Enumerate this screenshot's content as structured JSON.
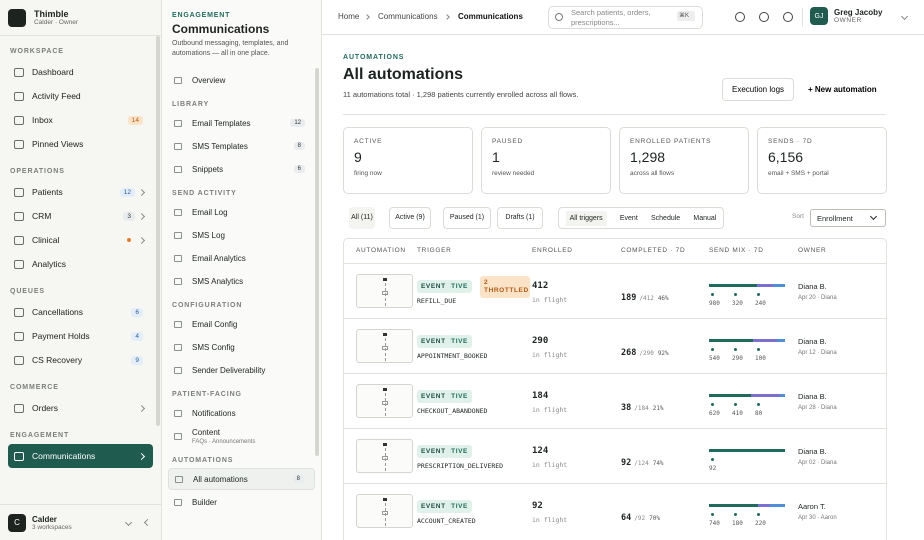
{
  "sidebar": {
    "brand": "Thimble",
    "org": "Calder · Owner",
    "sections": [
      {
        "title": "WORKSPACE",
        "items": [
          {
            "label": "Dashboard"
          },
          {
            "label": "Activity Feed"
          },
          {
            "label": "Inbox",
            "badge": "14",
            "tone": "warn"
          },
          {
            "label": "Pinned Views"
          }
        ]
      },
      {
        "title": "OPERATIONS",
        "items": [
          {
            "label": "Patients",
            "badge": "12",
            "tone": "info",
            "chevron": true
          },
          {
            "label": "CRM",
            "badge": "3",
            "tone": "plain",
            "chevron": true
          },
          {
            "label": "Clinical",
            "dot": true,
            "chevron": true
          },
          {
            "label": "Analytics"
          }
        ]
      },
      {
        "title": "QUEUES",
        "items": [
          {
            "label": "Cancellations",
            "badge": "6",
            "tone": "info"
          },
          {
            "label": "Payment Holds",
            "badge": "4",
            "tone": "info"
          },
          {
            "label": "CS Recovery",
            "badge": "9",
            "tone": "info"
          }
        ]
      },
      {
        "title": "COMMERCE",
        "items": [
          {
            "label": "Orders",
            "chevron": true
          }
        ]
      },
      {
        "title": "ENGAGEMENT",
        "items": [
          {
            "label": "Communications",
            "active": true,
            "chevron": true
          }
        ]
      }
    ],
    "footer": {
      "avatar": "C",
      "name": "Calder",
      "sub": "3 workspaces"
    }
  },
  "subnav": {
    "eyebrow": "ENGAGEMENT",
    "title": "Communications",
    "description": "Outbound messaging, templates, and automations — all in one place.",
    "top": [
      {
        "label": "Overview"
      }
    ],
    "sections": [
      {
        "title": "LIBRARY",
        "items": [
          {
            "label": "Email Templates",
            "badge": "12"
          },
          {
            "label": "SMS Templates",
            "badge": "8"
          },
          {
            "label": "Snippets",
            "badge": "6"
          }
        ]
      },
      {
        "title": "SEND ACTIVITY",
        "items": [
          {
            "label": "Email Log"
          },
          {
            "label": "SMS Log"
          },
          {
            "label": "Email Analytics"
          },
          {
            "label": "SMS Analytics"
          }
        ]
      },
      {
        "title": "CONFIGURATION",
        "items": [
          {
            "label": "Email Config"
          },
          {
            "label": "SMS Config"
          },
          {
            "label": "Sender Deliverability"
          }
        ]
      },
      {
        "title": "PATIENT-FACING",
        "items": [
          {
            "label": "Notifications"
          },
          {
            "label": "Content",
            "sub": "FAQs · Announcements"
          }
        ]
      },
      {
        "title": "AUTOMATIONS",
        "items": [
          {
            "label": "All automations",
            "badge": "8",
            "active": true
          },
          {
            "label": "Builder"
          }
        ]
      }
    ]
  },
  "topbar": {
    "breadcrumb": [
      "Home",
      "Communications",
      "Communications"
    ],
    "search": "Search patients, orders, prescriptions...",
    "shortcut": "⌘K",
    "user": {
      "initials": "GJ",
      "name": "Greg Jacoby",
      "role": "OWNER"
    }
  },
  "header": {
    "eyebrow": "AUTOMATIONS",
    "title": "All automations",
    "subtitle": "11 automations total · 1,298 patients currently enrolled across all flows.",
    "buttons": [
      "Execution logs",
      "+ New automation"
    ]
  },
  "stats": [
    {
      "label": "ACTIVE",
      "value": "9",
      "note": "firing now"
    },
    {
      "label": "PAUSED",
      "value": "1",
      "note": "review needed"
    },
    {
      "label": "ENROLLED PATIENTS",
      "value": "1,298",
      "note": "across all flows"
    },
    {
      "label": "SENDS · 7D",
      "value": "6,156",
      "note": "email + SMS + portal"
    }
  ],
  "filters": {
    "status": [
      "All (11)",
      "Active (9)",
      "Paused (1)",
      "Drafts (1)"
    ],
    "triggers": [
      "All triggers",
      "Event",
      "Schedule",
      "Manual"
    ],
    "sort_label": "Sort",
    "sort_value": "Enrollment"
  },
  "table": {
    "columns": [
      "AUTOMATION",
      "TRIGGER",
      "ENROLLED",
      "COMPLETED · 7D",
      "SEND MIX · 7D",
      "OWNER"
    ],
    "rows": [
      {
        "trigger": "EVENT",
        "status": "ACTIVE",
        "warning": "2 THROTTLED",
        "event": "REFILL_DUE",
        "enrolled": "412",
        "enrolled_note": "in flight",
        "completed": "189",
        "completed_of": "/412",
        "completed_pct": "46%",
        "mix": [
          980,
          320,
          240
        ],
        "owner": "Diana B.",
        "updated": "Apr 20 · Diana"
      },
      {
        "trigger": "EVENT",
        "status": "ACTIVE",
        "event": "APPOINTMENT_BOOKED",
        "enrolled": "290",
        "enrolled_note": "in flight",
        "completed": "268",
        "completed_of": "/290",
        "completed_pct": "92%",
        "mix": [
          540,
          290,
          100
        ],
        "owner": "Diana B.",
        "updated": "Apr 12 · Diana"
      },
      {
        "trigger": "EVENT",
        "status": "ACTIVE",
        "event": "CHECKOUT_ABANDONED",
        "enrolled": "184",
        "enrolled_note": "in flight",
        "completed": "38",
        "completed_of": "/184",
        "completed_pct": "21%",
        "mix": [
          620,
          410,
          80
        ],
        "owner": "Diana B.",
        "updated": "Apr 28 · Diana"
      },
      {
        "trigger": "EVENT",
        "status": "ACTIVE",
        "event": "PRESCRIPTION_DELIVERED",
        "enrolled": "124",
        "enrolled_note": "in flight",
        "completed": "92",
        "completed_of": "/124",
        "completed_pct": "74%",
        "mix": [
          92
        ],
        "owner": "Diana B.",
        "updated": "Apr 02 · Diana"
      },
      {
        "trigger": "EVENT",
        "status": "ACTIVE",
        "event": "ACCOUNT_CREATED",
        "enrolled": "92",
        "enrolled_note": "in flight",
        "completed": "64",
        "completed_of": "/92",
        "completed_pct": "70%",
        "mix": [
          740,
          180,
          220
        ],
        "owner": "Aaron T.",
        "updated": "Apr 30 · Aaron"
      }
    ]
  }
}
